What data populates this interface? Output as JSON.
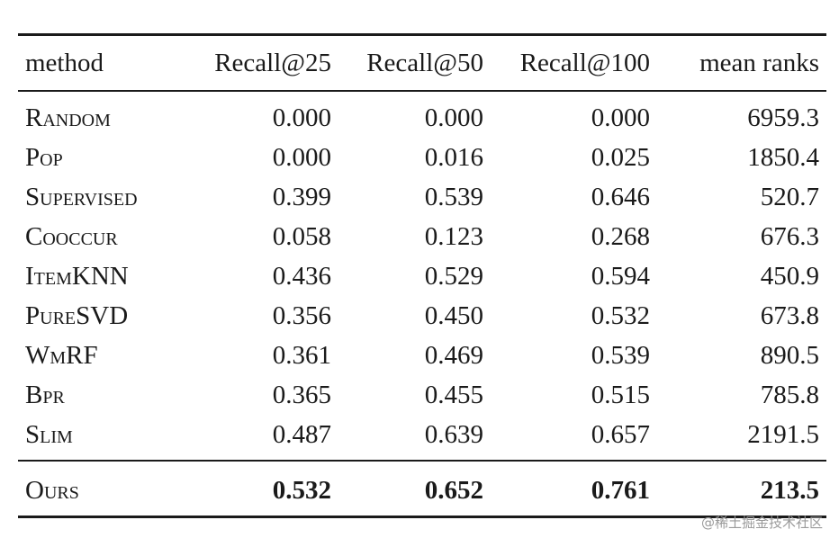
{
  "table": {
    "header": [
      "method",
      "Recall@25",
      "Recall@50",
      "Recall@100",
      "mean ranks"
    ],
    "rows": [
      [
        "Random",
        "0.000",
        "0.000",
        "0.000",
        "6959.3"
      ],
      [
        "Pop",
        "0.000",
        "0.016",
        "0.025",
        "1850.4"
      ],
      [
        "Supervised",
        "0.399",
        "0.539",
        "0.646",
        "520.7"
      ],
      [
        "Cooccur",
        "0.058",
        "0.123",
        "0.268",
        "676.3"
      ],
      [
        "ItemKNN",
        "0.436",
        "0.529",
        "0.594",
        "450.9"
      ],
      [
        "PureSVD",
        "0.356",
        "0.450",
        "0.532",
        "673.8"
      ],
      [
        "WmRF",
        "0.361",
        "0.469",
        "0.539",
        "890.5"
      ],
      [
        "Bpr",
        "0.365",
        "0.455",
        "0.515",
        "785.8"
      ],
      [
        "Slim",
        "0.487",
        "0.639",
        "0.657",
        "2191.5"
      ]
    ],
    "summary_row": [
      "Ours",
      "0.532",
      "0.652",
      "0.761",
      "213.5"
    ]
  },
  "watermark": "@稀土掘金技术社区"
}
